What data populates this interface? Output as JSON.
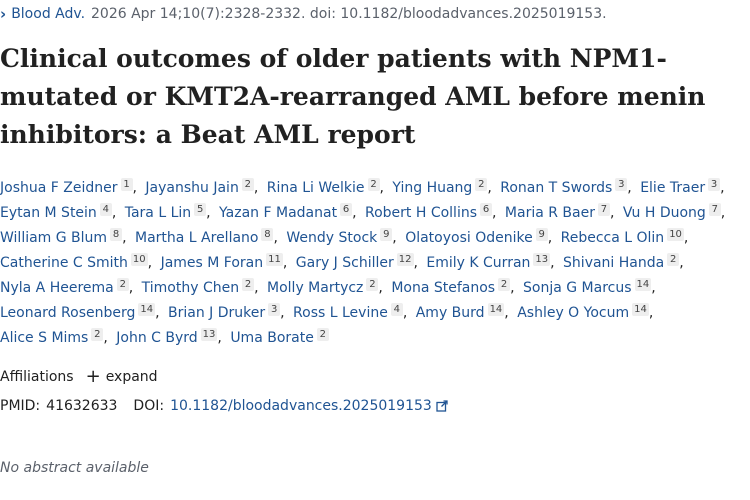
{
  "journal": {
    "name": "Blood Adv.",
    "citation": "2026 Apr 14;10(7):2328-2332. doi: 10.1182/bloodadvances.2025019153."
  },
  "title_lines": [
    "Clinical outcomes of older patients with NPM1-",
    "mutated or KMT2A-rearranged AML before menin",
    "inhibitors: a Beat AML report"
  ],
  "author_lines": [
    [
      {
        "name": "Joshua F Zeidner",
        "aff": "1"
      },
      {
        "name": "Jayanshu Jain",
        "aff": "2"
      },
      {
        "name": "Rina Li Welkie",
        "aff": "2"
      },
      {
        "name": "Ying Huang",
        "aff": "2"
      },
      {
        "name": "Ronan T Swords",
        "aff": "3"
      },
      {
        "name": "Elie Traer",
        "aff": "3"
      }
    ],
    [
      {
        "name": "Eytan M Stein",
        "aff": "4"
      },
      {
        "name": "Tara L Lin",
        "aff": "5"
      },
      {
        "name": "Yazan F Madanat",
        "aff": "6"
      },
      {
        "name": "Robert H Collins",
        "aff": "6"
      },
      {
        "name": "Maria R Baer",
        "aff": "7"
      },
      {
        "name": "Vu H Duong",
        "aff": "7"
      }
    ],
    [
      {
        "name": "William G Blum",
        "aff": "8"
      },
      {
        "name": "Martha L Arellano",
        "aff": "8"
      },
      {
        "name": "Wendy Stock",
        "aff": "9"
      },
      {
        "name": "Olatoyosi Odenike",
        "aff": "9"
      },
      {
        "name": "Rebecca L Olin",
        "aff": "10"
      }
    ],
    [
      {
        "name": "Catherine C Smith",
        "aff": "10"
      },
      {
        "name": "James M Foran",
        "aff": "11"
      },
      {
        "name": "Gary J Schiller",
        "aff": "12"
      },
      {
        "name": "Emily K Curran",
        "aff": "13"
      },
      {
        "name": "Shivani Handa",
        "aff": "2"
      }
    ],
    [
      {
        "name": "Nyla A Heerema",
        "aff": "2"
      },
      {
        "name": "Timothy Chen",
        "aff": "2"
      },
      {
        "name": "Molly Martycz",
        "aff": "2"
      },
      {
        "name": "Mona Stefanos",
        "aff": "2"
      },
      {
        "name": "Sonja G Marcus",
        "aff": "14"
      }
    ],
    [
      {
        "name": "Leonard Rosenberg",
        "aff": "14"
      },
      {
        "name": "Brian J Druker",
        "aff": "3"
      },
      {
        "name": "Ross L Levine",
        "aff": "4"
      },
      {
        "name": "Amy Burd",
        "aff": "14"
      },
      {
        "name": "Ashley O Yocum",
        "aff": "14"
      }
    ],
    [
      {
        "name": "Alice S Mims",
        "aff": "2"
      },
      {
        "name": "John C Byrd",
        "aff": "13"
      },
      {
        "name": "Uma Borate",
        "aff": "2"
      }
    ]
  ],
  "affiliations": {
    "label": "Affiliations",
    "expand_label": "expand"
  },
  "ids": {
    "pmid_label": "PMID:",
    "pmid": "41632633",
    "doi_label": "DOI:",
    "doi": "10.1182/bloodadvances.2025019153"
  },
  "abstract_note": "No abstract available",
  "icons": {
    "chevron": "chevron-right-icon",
    "plus": "plus-icon",
    "external": "external-link-icon"
  },
  "colors": {
    "link": "#205493",
    "text": "#212121",
    "muted": "#5b616b"
  }
}
